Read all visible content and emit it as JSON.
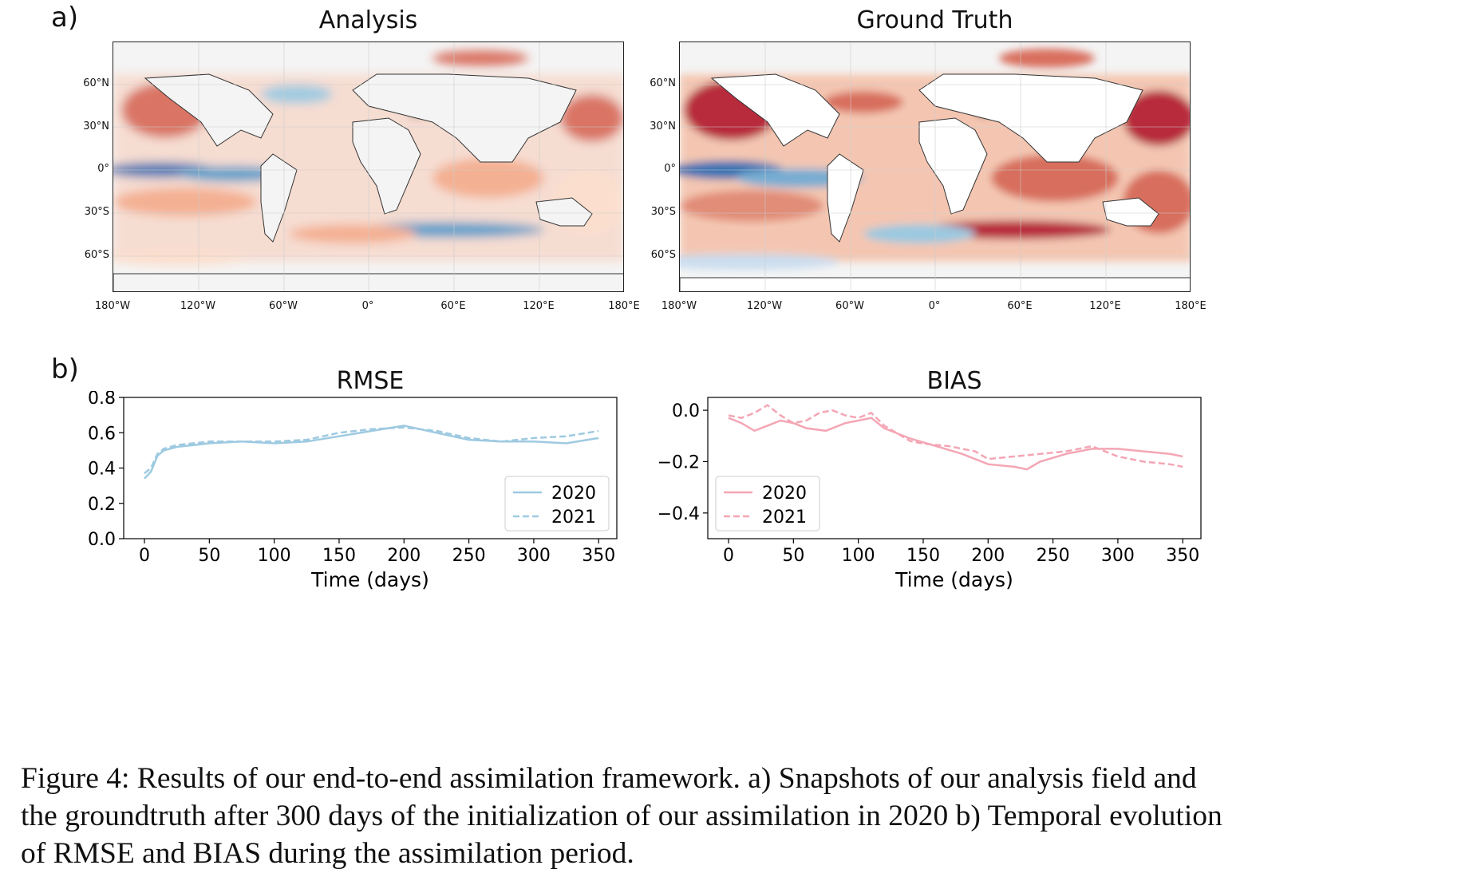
{
  "panel_a": {
    "label": "a)",
    "maps": [
      {
        "title": "Analysis"
      },
      {
        "title": "Ground Truth"
      }
    ],
    "lat_ticks": [
      "60°N",
      "30°N",
      "0°",
      "30°S",
      "60°S"
    ],
    "lon_ticks": [
      "180°W",
      "120°W",
      "60°W",
      "0°",
      "60°E",
      "120°E",
      "180°E"
    ],
    "colors": {
      "warm": "#b2182b",
      "cool": "#2166ac",
      "land": "#f4f4f4"
    }
  },
  "panel_b": {
    "label": "b)",
    "legend": [
      "2020",
      "2021"
    ]
  },
  "chart_data": [
    {
      "type": "line",
      "title": "RMSE",
      "xlabel": "Time (days)",
      "ylabel": "",
      "xlim": [
        -16,
        364
      ],
      "ylim": [
        0.0,
        0.8
      ],
      "xticks": [
        0,
        50,
        100,
        150,
        200,
        250,
        300,
        350
      ],
      "yticks": [
        0.0,
        0.2,
        0.4,
        0.6,
        0.8
      ],
      "ytick_labels": [
        "0.0",
        "0.2",
        "0.4",
        "0.6",
        "0.8"
      ],
      "color": "#9ecae1",
      "legend_position": "lower-right",
      "series": [
        {
          "name": "2020",
          "style": "solid",
          "x": [
            0,
            5,
            10,
            15,
            25,
            50,
            75,
            100,
            125,
            150,
            175,
            200,
            225,
            250,
            275,
            300,
            325,
            350
          ],
          "y": [
            0.34,
            0.38,
            0.47,
            0.5,
            0.52,
            0.54,
            0.55,
            0.54,
            0.55,
            0.58,
            0.61,
            0.64,
            0.6,
            0.56,
            0.55,
            0.55,
            0.54,
            0.57
          ]
        },
        {
          "name": "2021",
          "style": "dashed",
          "x": [
            0,
            5,
            10,
            15,
            25,
            50,
            75,
            100,
            125,
            150,
            175,
            200,
            225,
            250,
            275,
            300,
            325,
            350
          ],
          "y": [
            0.37,
            0.4,
            0.48,
            0.51,
            0.53,
            0.55,
            0.55,
            0.55,
            0.56,
            0.6,
            0.62,
            0.63,
            0.61,
            0.57,
            0.55,
            0.57,
            0.58,
            0.61
          ]
        }
      ]
    },
    {
      "type": "line",
      "title": "BIAS",
      "xlabel": "Time (days)",
      "ylabel": "",
      "xlim": [
        -16,
        364
      ],
      "ylim": [
        -0.5,
        0.05
      ],
      "xticks": [
        0,
        50,
        100,
        150,
        200,
        250,
        300,
        350
      ],
      "yticks": [
        0.0,
        -0.2,
        -0.4
      ],
      "ytick_labels": [
        "0.0",
        "−0.2",
        "−0.4"
      ],
      "color": "#f4a6b5",
      "legend_position": "lower-left",
      "series": [
        {
          "name": "2020",
          "style": "solid",
          "x": [
            0,
            10,
            20,
            30,
            40,
            50,
            60,
            75,
            90,
            100,
            110,
            120,
            140,
            160,
            180,
            190,
            200,
            220,
            230,
            240,
            260,
            280,
            300,
            320,
            340,
            350
          ],
          "y": [
            -0.03,
            -0.05,
            -0.08,
            -0.06,
            -0.04,
            -0.05,
            -0.07,
            -0.08,
            -0.05,
            -0.04,
            -0.03,
            -0.07,
            -0.11,
            -0.14,
            -0.17,
            -0.19,
            -0.21,
            -0.22,
            -0.23,
            -0.2,
            -0.17,
            -0.15,
            -0.15,
            -0.16,
            -0.17,
            -0.18
          ]
        },
        {
          "name": "2021",
          "style": "dashed",
          "x": [
            0,
            10,
            20,
            30,
            40,
            50,
            60,
            70,
            80,
            90,
            100,
            110,
            120,
            140,
            150,
            170,
            190,
            200,
            220,
            240,
            260,
            280,
            300,
            320,
            340,
            350
          ],
          "y": [
            -0.02,
            -0.03,
            -0.01,
            0.02,
            -0.02,
            -0.05,
            -0.04,
            -0.01,
            0.0,
            -0.02,
            -0.03,
            -0.01,
            -0.06,
            -0.12,
            -0.13,
            -0.14,
            -0.16,
            -0.19,
            -0.18,
            -0.17,
            -0.16,
            -0.14,
            -0.18,
            -0.2,
            -0.21,
            -0.22
          ]
        }
      ]
    }
  ],
  "caption": "Figure 4: Results of our end-to-end assimilation framework. a) Snapshots of our analysis field and\nthe groundtruth after 300 days of the initialization of our assimilation in 2020 b) Temporal evolution\nof RMSE and BIAS during the assimilation period."
}
